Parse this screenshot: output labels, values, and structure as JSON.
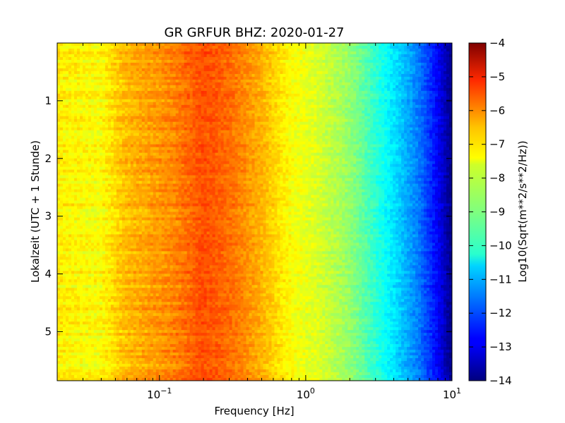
{
  "chart_data": {
    "type": "heatmap",
    "title": "GR GRFUR BHZ: 2020-01-27",
    "xlabel": "Frequency [Hz]",
    "ylabel": "Lokalzeit (UTC + 1 Stunde)",
    "x_scale": "log",
    "xlim": [
      0.02,
      10
    ],
    "x_ticks": [
      {
        "value": 0.1,
        "base": "10",
        "exp": "−1"
      },
      {
        "value": 1,
        "base": "10",
        "exp": "0"
      },
      {
        "value": 10,
        "base": "10",
        "exp": "1"
      }
    ],
    "ylim": [
      0,
      5.85
    ],
    "y_inverted": true,
    "y_ticks": [
      1,
      2,
      3,
      4,
      5
    ],
    "y_tick_labels": [
      "1",
      "2",
      "3",
      "4",
      "5"
    ],
    "colorbar": {
      "label": "Log10(Sqrt(m**2/s**2/Hz))",
      "min": -14,
      "max": -4,
      "ticks": [
        -4,
        -5,
        -6,
        -7,
        -8,
        -9,
        -10,
        -11,
        -12,
        -13,
        -14
      ],
      "tick_labels": [
        "−4",
        "−5",
        "−6",
        "−7",
        "−8",
        "−9",
        "−10",
        "−11",
        "−12",
        "−13",
        "−14"
      ],
      "colormap": "jet"
    },
    "grid": false,
    "spectrum_profile": {
      "freq_hz": [
        0.02,
        0.039,
        0.058,
        0.12,
        0.2,
        0.3,
        0.5,
        0.8,
        1.2,
        2.0,
        3.0,
        4.5,
        6.0,
        8.0,
        10.0
      ],
      "value": [
        -7.6,
        -7.8,
        -7.1,
        -6.6,
        -6.0,
        -6.3,
        -7.0,
        -7.8,
        -8.1,
        -8.8,
        -9.8,
        -10.8,
        -11.6,
        -12.8,
        -14.0
      ]
    }
  }
}
